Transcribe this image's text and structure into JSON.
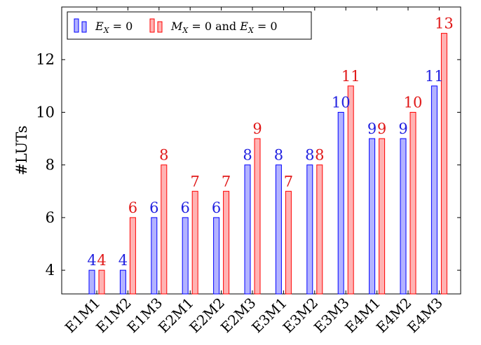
{
  "chart_data": {
    "type": "bar",
    "title": "",
    "xlabel": "",
    "ylabel": "#LUTs",
    "ylim": [
      3.1,
      14.0
    ],
    "yticks": [
      4,
      6,
      8,
      10,
      12
    ],
    "grid": false,
    "legend_position": "top-left",
    "categories": [
      "E1M1",
      "E1M2",
      "E1M3",
      "E2M1",
      "E2M2",
      "E2M3",
      "E3M1",
      "E3M2",
      "E3M3",
      "E4M1",
      "E4M2",
      "E4M3"
    ],
    "series": [
      {
        "name": "E_X = 0",
        "values": [
          4,
          4,
          6,
          6,
          6,
          8,
          8,
          8,
          10,
          9,
          9,
          11
        ],
        "fill": "#b3b3ff",
        "stroke": "#0000ff",
        "label_color": "#2020e0"
      },
      {
        "name": "M_X = 0 and E_X = 0",
        "values": [
          4,
          6,
          8,
          7,
          7,
          9,
          7,
          8,
          11,
          9,
          10,
          13
        ],
        "fill": "#ffb3b3",
        "stroke": "#ff0000",
        "label_color": "#e01818"
      }
    ]
  }
}
